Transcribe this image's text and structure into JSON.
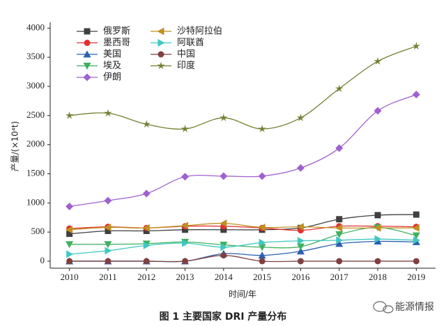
{
  "chart_data": {
    "type": "line",
    "y_label": "产量/(×10⁴t)",
    "x_label": "时间/年",
    "caption": "图 1   主要国家 DRI 产量分布",
    "watermark": "能源情报",
    "x": [
      2010,
      2011,
      2012,
      2013,
      2014,
      2015,
      2016,
      2017,
      2018,
      2019
    ],
    "xlim": [
      2009.5,
      2019.5
    ],
    "xticks": [
      2010,
      2011,
      2012,
      2013,
      2014,
      2015,
      2016,
      2017,
      2018,
      2019
    ],
    "ylim": [
      -120,
      4100
    ],
    "yticks": [
      0,
      500,
      1000,
      1500,
      2000,
      2500,
      3000,
      3500,
      4000
    ],
    "series": [
      {
        "name": "俄罗斯",
        "color": "#404040",
        "marker": "square",
        "values": [
          470,
          520,
          520,
          540,
          540,
          540,
          570,
          720,
          790,
          800
        ]
      },
      {
        "name": "墨西哥",
        "color": "#e03030",
        "marker": "circle",
        "values": [
          560,
          590,
          570,
          600,
          600,
          570,
          530,
          600,
          600,
          590
        ]
      },
      {
        "name": "美国",
        "color": "#2a60b0",
        "marker": "triangle-up",
        "values": [
          0,
          0,
          0,
          0,
          130,
          100,
          170,
          300,
          340,
          330
        ]
      },
      {
        "name": "埃及",
        "color": "#40b060",
        "marker": "triangle-down",
        "values": [
          290,
          290,
          300,
          330,
          280,
          240,
          250,
          460,
          580,
          440
        ]
      },
      {
        "name": "伊朗",
        "color": "#a060d0",
        "marker": "diamond",
        "values": [
          940,
          1040,
          1160,
          1450,
          1460,
          1460,
          1600,
          1940,
          2580,
          2860
        ]
      },
      {
        "name": "沙特阿拉伯",
        "color": "#c09020",
        "marker": "triangle-left",
        "values": [
          540,
          580,
          570,
          610,
          650,
          580,
          590,
          570,
          570,
          570
        ]
      },
      {
        "name": "阿联酋",
        "color": "#40c8c0",
        "marker": "triangle-right",
        "values": [
          120,
          180,
          270,
          310,
          240,
          320,
          350,
          360,
          380,
          360
        ]
      },
      {
        "name": "中国",
        "color": "#804040",
        "marker": "circle",
        "values": [
          0,
          0,
          0,
          0,
          100,
          0,
          0,
          0,
          0,
          0
        ]
      },
      {
        "name": "印度",
        "color": "#708030",
        "marker": "star",
        "values": [
          2500,
          2540,
          2350,
          2270,
          2460,
          2270,
          2460,
          2960,
          3430,
          3690
        ]
      }
    ]
  }
}
